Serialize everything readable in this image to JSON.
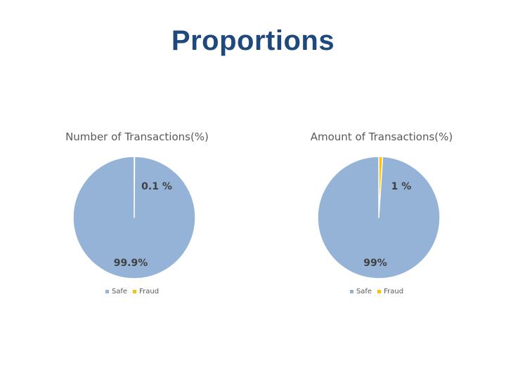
{
  "slide": {
    "title": "Proportions"
  },
  "colors": {
    "title": "#1f497d",
    "safe": "#95b3d7",
    "fraud": "#ffc000",
    "label": "#404040"
  },
  "chart_data": [
    {
      "type": "pie",
      "title": "Number of Transactions(%)",
      "categories": [
        "Safe",
        "Fraud"
      ],
      "values": [
        99.9,
        0.1
      ],
      "data_labels": [
        "99.9%",
        "0.1 %"
      ],
      "legend": "bottom",
      "legend_entries": [
        "Safe",
        "Fraud"
      ]
    },
    {
      "type": "pie",
      "title": "Amount of Transactions(%)",
      "categories": [
        "Safe",
        "Fraud"
      ],
      "values": [
        99,
        1
      ],
      "data_labels": [
        "99%",
        "1 %"
      ],
      "legend": "bottom",
      "legend_entries": [
        "Safe",
        "Fraud"
      ]
    }
  ]
}
